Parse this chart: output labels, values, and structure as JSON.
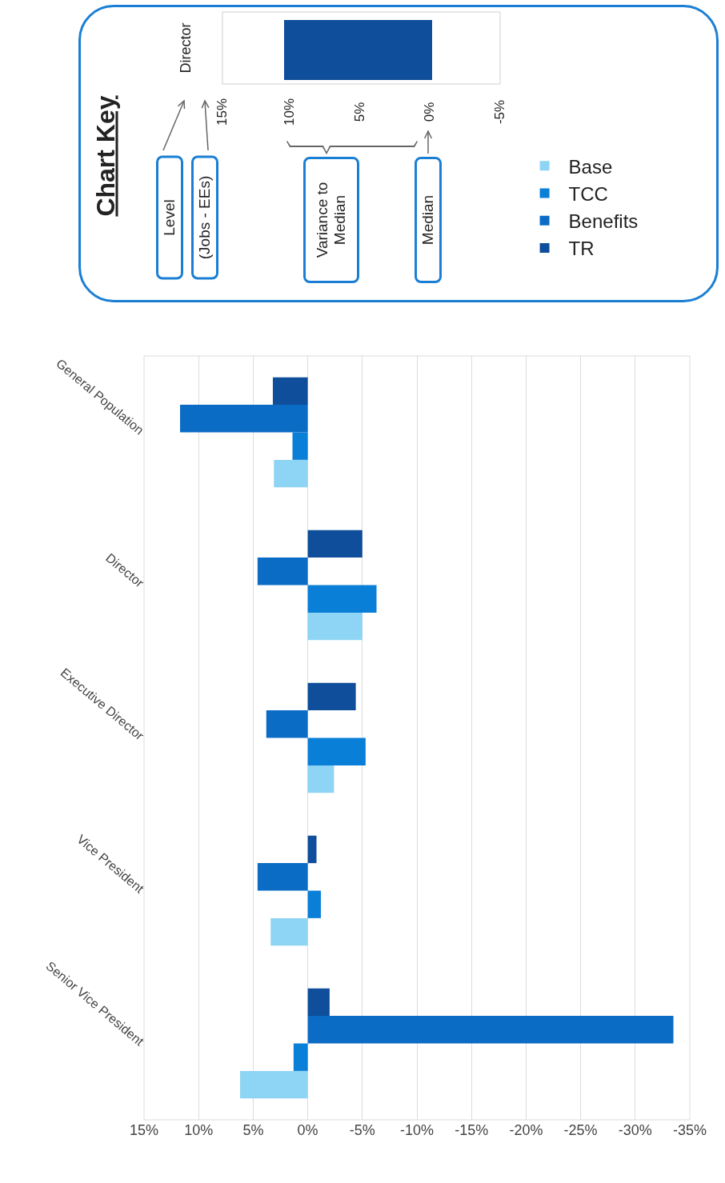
{
  "chart_data": {
    "type": "bar",
    "orientation": "horizontal",
    "categories": [
      "General Population",
      "Director",
      "Executive Director",
      "Vice President",
      "Senior Vice President"
    ],
    "series": [
      {
        "name": "Base",
        "color": "#8ed4f4",
        "values": [
          3.1,
          -5.0,
          -2.4,
          3.4,
          6.2
        ]
      },
      {
        "name": "TCC",
        "color": "#0a7fd8",
        "values": [
          1.4,
          -6.3,
          -5.3,
          -1.2,
          1.3
        ]
      },
      {
        "name": "Benefits",
        "color": "#0b6cc6",
        "values": [
          11.7,
          4.6,
          3.8,
          4.6,
          -33.5
        ]
      },
      {
        "name": "TR",
        "color": "#0e4e9b",
        "values": [
          3.2,
          -5.0,
          -4.4,
          -0.8,
          -2.0
        ]
      }
    ],
    "xlim": [
      15,
      -35
    ],
    "xticks": [
      {
        "value": 15,
        "label": "15%"
      },
      {
        "value": 10,
        "label": "10%"
      },
      {
        "value": 5,
        "label": "5%"
      },
      {
        "value": 0,
        "label": "0%"
      },
      {
        "value": -5,
        "label": "-5%"
      },
      {
        "value": -10,
        "label": "-10%"
      },
      {
        "value": -15,
        "label": "-15%"
      },
      {
        "value": -20,
        "label": "-20%"
      },
      {
        "value": -25,
        "label": "-25%"
      },
      {
        "value": -30,
        "label": "-30%"
      },
      {
        "value": -35,
        "label": "-35%"
      }
    ],
    "grid": "x",
    "legend": "top right",
    "annotations": [
      "Chart Key",
      "Level",
      "(Jobs - EEs)",
      "Variance to Median",
      "Median",
      "Director",
      "15%",
      "10%",
      "5%",
      "0%",
      "-5%"
    ]
  }
}
